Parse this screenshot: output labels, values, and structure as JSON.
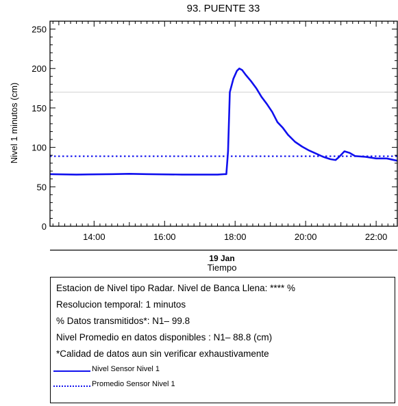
{
  "chart_data": {
    "type": "line",
    "title": "93. PUENTE 33",
    "ylabel": "Nivel 1 minutos (cm)",
    "xlabel": "Tiempo",
    "date_label": "19 Jan",
    "ylim": [
      0,
      260
    ],
    "xlim_hours": [
      12.75,
      22.6
    ],
    "y_ticks": [
      0,
      50,
      100,
      150,
      200,
      250
    ],
    "x_ticks": [
      {
        "hour": 14,
        "label": "14:00"
      },
      {
        "hour": 16,
        "label": "16:00"
      },
      {
        "hour": 18,
        "label": "18:00"
      },
      {
        "hour": 20,
        "label": "20:00"
      },
      {
        "hour": 22,
        "label": "22:00"
      }
    ],
    "reference_line": {
      "value": 170,
      "color": "#d8d8d8"
    },
    "series": [
      {
        "name": "Nivel Sensor Nivel 1",
        "style": "solid",
        "color": "#1010ee",
        "points": [
          [
            12.75,
            66
          ],
          [
            13.5,
            65.5
          ],
          [
            14.5,
            66
          ],
          [
            15.0,
            66.5
          ],
          [
            15.5,
            66
          ],
          [
            16.5,
            65.5
          ],
          [
            17.5,
            65.5
          ],
          [
            17.7,
            66
          ],
          [
            17.75,
            66
          ],
          [
            17.8,
            95
          ],
          [
            17.85,
            170
          ],
          [
            17.95,
            187
          ],
          [
            18.05,
            197
          ],
          [
            18.12,
            200
          ],
          [
            18.2,
            198
          ],
          [
            18.3,
            192
          ],
          [
            18.45,
            184
          ],
          [
            18.6,
            175
          ],
          [
            18.75,
            164
          ],
          [
            18.9,
            155
          ],
          [
            19.05,
            145
          ],
          [
            19.2,
            132
          ],
          [
            19.35,
            125
          ],
          [
            19.5,
            116
          ],
          [
            19.7,
            107
          ],
          [
            19.9,
            101
          ],
          [
            20.1,
            96
          ],
          [
            20.3,
            92
          ],
          [
            20.5,
            88
          ],
          [
            20.7,
            85
          ],
          [
            20.85,
            84
          ],
          [
            20.95,
            88
          ],
          [
            21.1,
            95
          ],
          [
            21.25,
            93
          ],
          [
            21.4,
            89
          ],
          [
            21.7,
            88
          ],
          [
            22.0,
            86
          ],
          [
            22.3,
            86
          ],
          [
            22.6,
            83
          ]
        ]
      },
      {
        "name": "Promedio Sensor Nivel 1",
        "style": "dotted",
        "color": "#1010ee",
        "value": 88.8
      }
    ]
  },
  "info": {
    "lines": [
      "Estacion de Nivel tipo Radar. Nivel de Banca Llena: **** %",
      "Resolucion temporal: 1 minutos",
      "% Datos transmitidos*: N1– 99.8",
      "Nivel Promedio en datos disponibles : N1– 88.8 (cm)",
      "*Calidad de datos aun sin verificar exhaustivamente"
    ],
    "legend": [
      "Nivel Sensor Nivel 1",
      "Promedio Sensor Nivel 1"
    ]
  }
}
